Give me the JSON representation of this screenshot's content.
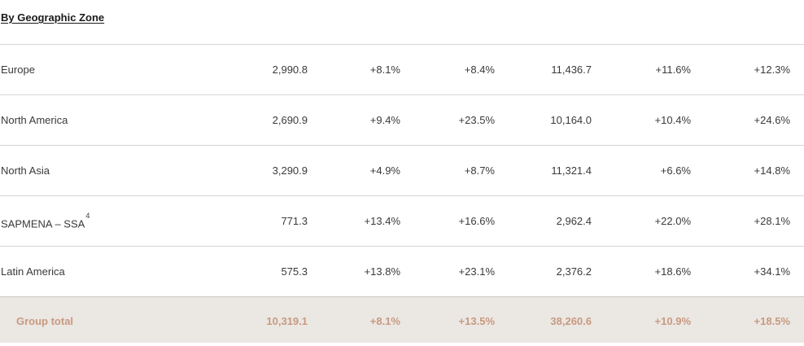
{
  "section": {
    "heading": "By Geographic Zone"
  },
  "rows": [
    {
      "zone": "Europe",
      "superscript": "",
      "v1": "2,990.8",
      "v2": "+8.1%",
      "v3": "+8.4%",
      "v4": "11,436.7",
      "v5": "+11.6%",
      "v6": "+12.3%"
    },
    {
      "zone": "North America",
      "superscript": "",
      "v1": "2,690.9",
      "v2": "+9.4%",
      "v3": "+23.5%",
      "v4": "10,164.0",
      "v5": "+10.4%",
      "v6": "+24.6%"
    },
    {
      "zone": "North Asia",
      "superscript": "",
      "v1": "3,290.9",
      "v2": "+4.9%",
      "v3": "+8.7%",
      "v4": "11,321.4",
      "v5": "+6.6%",
      "v6": "+14.8%"
    },
    {
      "zone": "SAPMENA – SSA",
      "superscript": "4",
      "v1": "771.3",
      "v2": "+13.4%",
      "v3": "+16.6%",
      "v4": "2,962.4",
      "v5": "+22.0%",
      "v6": "+28.1%"
    },
    {
      "zone": "Latin America",
      "superscript": "",
      "v1": "575.3",
      "v2": "+13.8%",
      "v3": "+23.1%",
      "v4": "2,376.2",
      "v5": "+18.6%",
      "v6": "+34.1%"
    }
  ],
  "total": {
    "label": "Group total",
    "v1": "10,319.1",
    "v2": "+8.1%",
    "v3": "+13.5%",
    "v4": "38,260.6",
    "v5": "+10.9%",
    "v6": "+18.5%"
  },
  "colors": {
    "total_background": "#ebe7e3",
    "total_text": "#c79a80",
    "divider": "#d6d6d6"
  }
}
